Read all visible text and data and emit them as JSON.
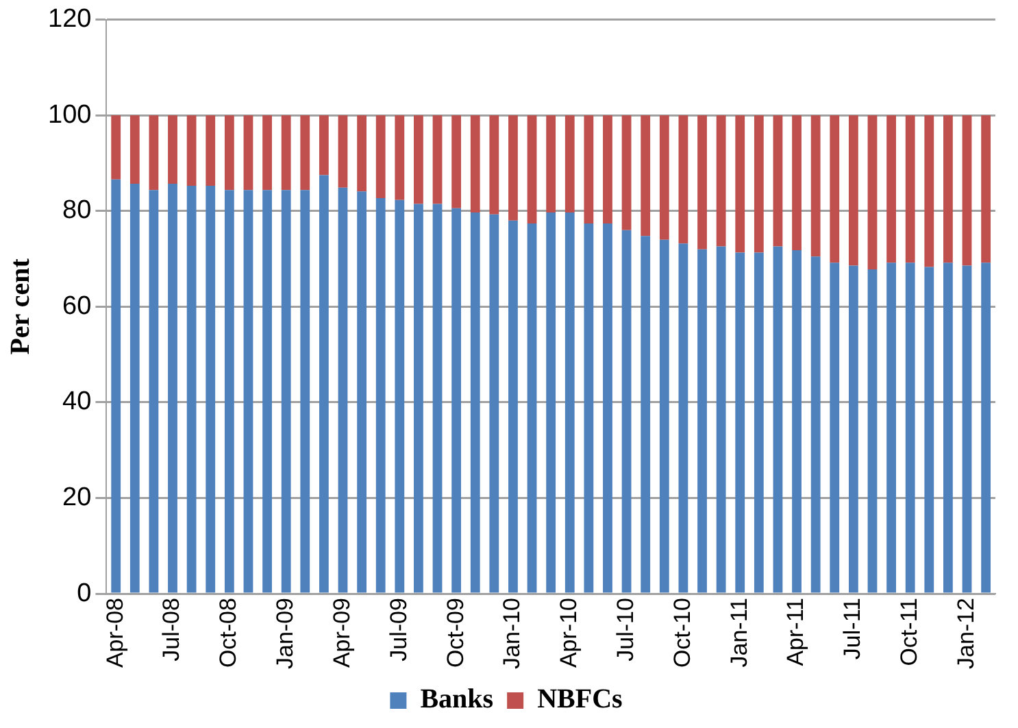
{
  "chart_data": {
    "type": "bar",
    "stacked": true,
    "ylabel": "Per cent",
    "categories": [
      "Apr-08",
      null,
      null,
      "Jul-08",
      null,
      null,
      "Oct-08",
      null,
      null,
      "Jan-09",
      null,
      null,
      "Apr-09",
      null,
      null,
      "Jul-09",
      null,
      null,
      "Oct-09",
      null,
      null,
      "Jan-10",
      null,
      null,
      "Apr-10",
      null,
      null,
      "Jul-10",
      null,
      null,
      "Oct-10",
      null,
      null,
      "Jan-11",
      null,
      null,
      "Apr-11",
      null,
      null,
      "Jul-11",
      null,
      null,
      "Oct-11",
      null,
      null,
      "Jan-12",
      null
    ],
    "series": [
      {
        "name": "Banks",
        "color": "#4f81bd",
        "values": [
          86.6,
          85.7,
          84.4,
          85.7,
          85.3,
          85.3,
          84.4,
          84.4,
          84.4,
          84.4,
          84.4,
          87.5,
          84.9,
          84.1,
          82.7,
          82.3,
          81.5,
          81.5,
          80.6,
          79.7,
          79.3,
          78.0,
          77.4,
          79.7,
          79.7,
          77.4,
          77.4,
          76.0,
          74.8,
          74.0,
          73.2,
          72.0,
          72.6,
          71.3,
          71.3,
          72.6,
          71.8,
          70.5,
          69.2,
          68.6,
          67.8,
          69.2,
          69.2,
          68.3,
          69.2,
          68.6,
          69.2
        ]
      },
      {
        "name": "NBFCs",
        "color": "#c0504d",
        "values": [
          13.4,
          14.3,
          15.6,
          14.3,
          14.7,
          14.7,
          15.6,
          15.6,
          15.6,
          15.6,
          15.6,
          12.5,
          15.1,
          15.9,
          17.3,
          17.7,
          18.5,
          18.5,
          19.4,
          20.3,
          20.7,
          22.0,
          22.6,
          20.3,
          20.3,
          22.6,
          22.6,
          24.0,
          25.2,
          26.0,
          26.8,
          28.0,
          27.4,
          28.7,
          28.7,
          27.4,
          28.2,
          29.5,
          30.8,
          31.4,
          32.2,
          30.8,
          30.8,
          31.7,
          30.8,
          31.4,
          30.8
        ]
      }
    ],
    "ylim": [
      0,
      120
    ],
    "yticks": [
      0,
      20,
      40,
      60,
      80,
      100,
      120
    ],
    "grid": "y",
    "legend": "bottom"
  }
}
